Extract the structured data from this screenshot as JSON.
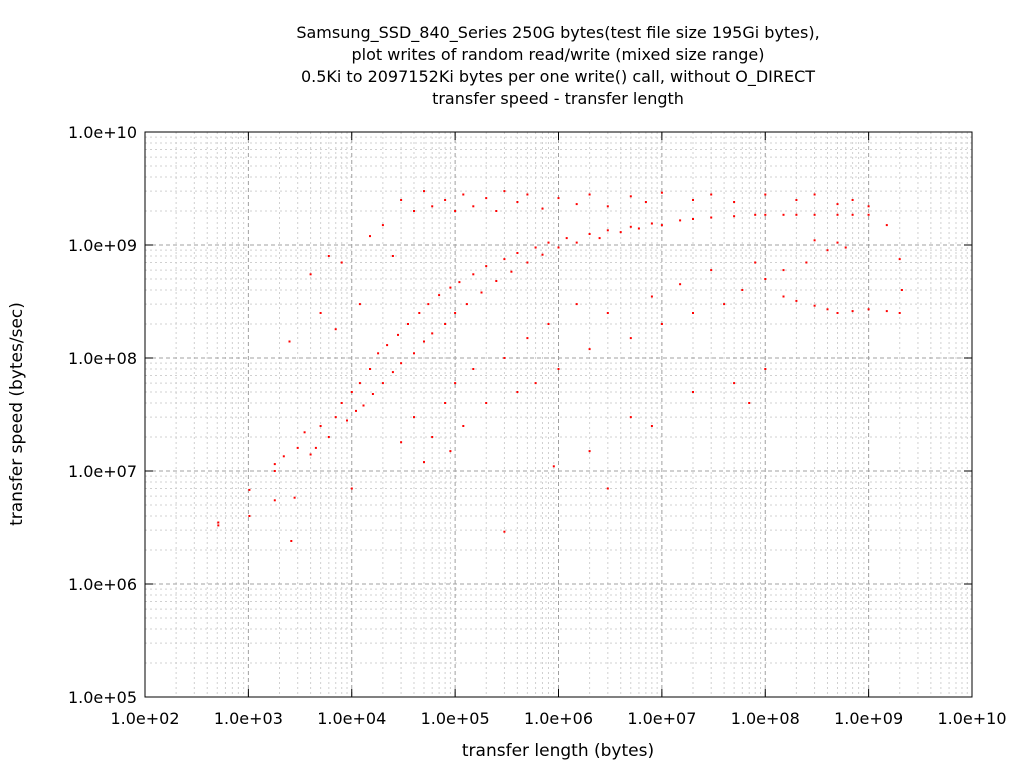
{
  "chart_data": {
    "type": "scatter",
    "title_lines": [
      "Samsung_SSD_840_Series 250G bytes(test file size 195Gi bytes),",
      "plot writes of random read/write (mixed size range)",
      "0.5Ki to 2097152Ki bytes per one write() call, without O_DIRECT",
      "transfer speed - transfer length"
    ],
    "xlabel": "transfer length (bytes)",
    "ylabel": "transfer speed (bytes/sec)",
    "x_scale": "log",
    "y_scale": "log",
    "xlim": [
      100,
      10000000000
    ],
    "ylim": [
      100000,
      10000000000
    ],
    "x_ticks": [
      {
        "value": 100,
        "label": "1.0e+02"
      },
      {
        "value": 1000,
        "label": "1.0e+03"
      },
      {
        "value": 10000,
        "label": "1.0e+04"
      },
      {
        "value": 100000,
        "label": "1.0e+05"
      },
      {
        "value": 1000000,
        "label": "1.0e+06"
      },
      {
        "value": 10000000,
        "label": "1.0e+07"
      },
      {
        "value": 100000000,
        "label": "1.0e+08"
      },
      {
        "value": 1000000000,
        "label": "1.0e+09"
      },
      {
        "value": 10000000000,
        "label": "1.0e+10"
      }
    ],
    "y_ticks": [
      {
        "value": 100000,
        "label": "1.0e+05"
      },
      {
        "value": 1000000,
        "label": "1.0e+06"
      },
      {
        "value": 10000000,
        "label": "1.0e+07"
      },
      {
        "value": 100000000,
        "label": "1.0e+08"
      },
      {
        "value": 1000000000,
        "label": "1.0e+09"
      },
      {
        "value": 10000000000,
        "label": "1.0e+10"
      }
    ],
    "grid": true,
    "minor_grid": true,
    "point_color": "#ff0000",
    "series": [
      {
        "points": [
          [
            512,
            3500000
          ],
          [
            512,
            3300000
          ],
          [
            1024,
            4000000
          ],
          [
            1024,
            6800000
          ],
          [
            1800,
            10000000
          ],
          [
            1800,
            11500000
          ],
          [
            1800,
            5500000
          ],
          [
            2200,
            13500000
          ],
          [
            2800,
            5800000
          ],
          [
            2600,
            2400000
          ],
          [
            3000,
            16000000
          ],
          [
            3500,
            22000000
          ],
          [
            4000,
            14000000
          ],
          [
            4500,
            16000000
          ],
          [
            5000,
            25000000
          ],
          [
            6000,
            20000000
          ],
          [
            7000,
            30000000
          ],
          [
            8000,
            40000000
          ],
          [
            9000,
            28000000
          ],
          [
            10000,
            7000000
          ],
          [
            10000,
            50000000
          ],
          [
            11000,
            34000000
          ],
          [
            12000,
            60000000
          ],
          [
            13000,
            38000000
          ],
          [
            15000,
            80000000
          ],
          [
            16000,
            48000000
          ],
          [
            18000,
            110000000
          ],
          [
            20000,
            60000000
          ],
          [
            22000,
            130000000
          ],
          [
            25000,
            75000000
          ],
          [
            28000,
            160000000
          ],
          [
            30000,
            90000000
          ],
          [
            35000,
            200000000
          ],
          [
            40000,
            110000000
          ],
          [
            45000,
            250000000
          ],
          [
            50000,
            140000000
          ],
          [
            55000,
            300000000
          ],
          [
            60000,
            165000000
          ],
          [
            70000,
            360000000
          ],
          [
            80000,
            200000000
          ],
          [
            90000,
            420000000
          ],
          [
            100000,
            250000000
          ],
          [
            110000,
            470000000
          ],
          [
            130000,
            300000000
          ],
          [
            150000,
            550000000
          ],
          [
            180000,
            380000000
          ],
          [
            200000,
            650000000
          ],
          [
            250000,
            480000000
          ],
          [
            300000,
            750000000
          ],
          [
            350000,
            580000000
          ],
          [
            400000,
            850000000
          ],
          [
            500000,
            700000000
          ],
          [
            600000,
            950000000
          ],
          [
            700000,
            820000000
          ],
          [
            800000,
            1050000000
          ],
          [
            1000000,
            950000000
          ],
          [
            1200000,
            1150000000
          ],
          [
            1500000,
            1050000000
          ],
          [
            2000000,
            1250000000
          ],
          [
            2500000,
            1150000000
          ],
          [
            3000000,
            1350000000
          ],
          [
            4000000,
            1300000000
          ],
          [
            5000000,
            1450000000
          ],
          [
            6000000,
            1400000000
          ],
          [
            8000000,
            1550000000
          ],
          [
            10000000,
            1500000000
          ],
          [
            15000000,
            1650000000
          ],
          [
            20000000,
            1700000000
          ],
          [
            30000000,
            1750000000
          ],
          [
            50000000,
            1800000000
          ],
          [
            80000000,
            1850000000
          ],
          [
            100000000,
            1850000000
          ],
          [
            150000000,
            1850000000
          ],
          [
            200000000,
            1850000000
          ],
          [
            300000000,
            1850000000
          ],
          [
            500000000,
            1850000000
          ],
          [
            700000000,
            1850000000
          ],
          [
            1000000000,
            1850000000
          ],
          [
            1500000000,
            1500000000
          ],
          [
            2000000000,
            750000000
          ],
          [
            2100000000,
            400000000
          ],
          [
            2000000000,
            250000000
          ],
          [
            1500000000,
            260000000
          ],
          [
            1000000000,
            270000000
          ],
          [
            700000000,
            260000000
          ],
          [
            500000000,
            250000000
          ],
          [
            400000000,
            270000000
          ],
          [
            300000000,
            290000000
          ],
          [
            200000000,
            320000000
          ],
          [
            150000000,
            350000000
          ],
          [
            300000000,
            1100000000
          ],
          [
            400000000,
            900000000
          ],
          [
            500000000,
            1050000000
          ],
          [
            600000000,
            950000000
          ],
          [
            250000000,
            700000000
          ],
          [
            150000000,
            600000000
          ],
          [
            100000000,
            500000000
          ],
          [
            80000000,
            700000000
          ],
          [
            60000000,
            400000000
          ],
          [
            40000000,
            300000000
          ],
          [
            30000000,
            600000000
          ],
          [
            20000000,
            250000000
          ],
          [
            15000000,
            450000000
          ],
          [
            10000000,
            200000000
          ],
          [
            8000000,
            350000000
          ],
          [
            5000000,
            150000000
          ],
          [
            3000000,
            250000000
          ],
          [
            2000000,
            120000000
          ],
          [
            1500000,
            300000000
          ],
          [
            1000000,
            80000000
          ],
          [
            800000,
            200000000
          ],
          [
            600000,
            60000000
          ],
          [
            500000,
            150000000
          ],
          [
            400000,
            50000000
          ],
          [
            300000,
            100000000
          ],
          [
            200000,
            40000000
          ],
          [
            150000,
            80000000
          ],
          [
            120000,
            25000000
          ],
          [
            100000,
            60000000
          ],
          [
            90000,
            15000000
          ],
          [
            80000,
            40000000
          ],
          [
            60000,
            20000000
          ],
          [
            50000,
            12000000
          ],
          [
            40000,
            30000000
          ],
          [
            30000,
            18000000
          ],
          [
            300000,
            2900000
          ],
          [
            900000,
            11000000
          ],
          [
            3000000,
            7000000
          ],
          [
            8000000,
            25000000
          ],
          [
            20000000,
            50000000
          ],
          [
            50000000,
            60000000
          ],
          [
            70000000,
            40000000
          ],
          [
            100000000,
            80000000
          ],
          [
            5000000,
            30000000
          ],
          [
            2000000,
            15000000
          ],
          [
            30000,
            2500000000
          ],
          [
            40000,
            2000000000
          ],
          [
            50000,
            3000000000
          ],
          [
            60000,
            2200000000
          ],
          [
            80000,
            2500000000
          ],
          [
            100000,
            2000000000
          ],
          [
            120000,
            2800000000
          ],
          [
            150000,
            2200000000
          ],
          [
            200000,
            2600000000
          ],
          [
            250000,
            2000000000
          ],
          [
            300000,
            3000000000
          ],
          [
            400000,
            2400000000
          ],
          [
            500000,
            2800000000
          ],
          [
            700000,
            2100000000
          ],
          [
            1000000,
            2600000000
          ],
          [
            1500000,
            2300000000
          ],
          [
            2000000,
            2800000000
          ],
          [
            3000000,
            2200000000
          ],
          [
            5000000,
            2700000000
          ],
          [
            7000000,
            2400000000
          ],
          [
            10000000,
            2900000000
          ],
          [
            20000000,
            2500000000
          ],
          [
            30000000,
            2800000000
          ],
          [
            50000000,
            2400000000
          ],
          [
            100000000,
            2800000000
          ],
          [
            200000000,
            2500000000
          ],
          [
            300000000,
            2800000000
          ],
          [
            500000000,
            2300000000
          ],
          [
            700000000,
            2500000000
          ],
          [
            1000000000,
            2200000000
          ],
          [
            20000,
            1500000000
          ],
          [
            15000,
            1200000000
          ],
          [
            25000,
            800000000
          ],
          [
            8000,
            700000000
          ],
          [
            6000,
            800000000
          ],
          [
            4000,
            550000000
          ],
          [
            5000,
            250000000
          ],
          [
            7000,
            180000000
          ],
          [
            12000,
            300000000
          ],
          [
            2500,
            140000000
          ]
        ]
      }
    ]
  }
}
